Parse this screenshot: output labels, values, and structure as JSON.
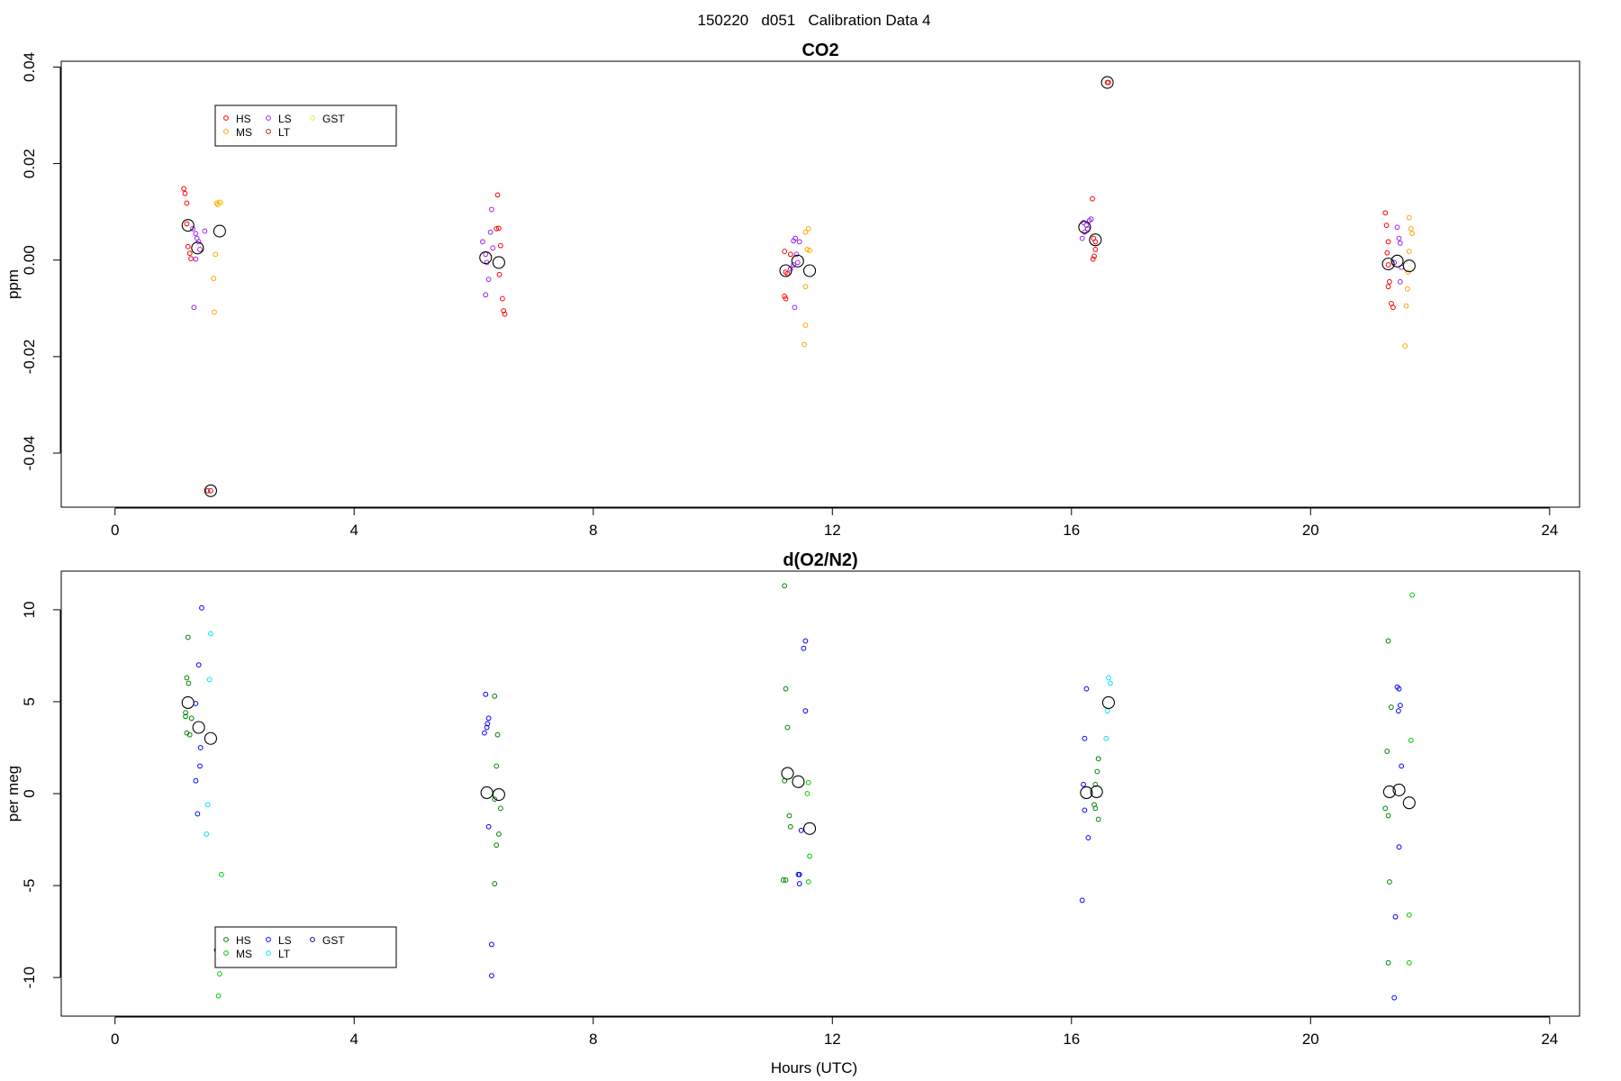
{
  "figure": {
    "suptitle": "150220   d051   Calibration Data 4",
    "xlabel": "Hours (UTC)"
  },
  "chart_data": [
    {
      "type": "scatter",
      "title": "CO2",
      "ylabel": "ppm",
      "xlim": [
        -0.9,
        24.5
      ],
      "ylim": [
        -0.0512,
        0.0412
      ],
      "xticks": [
        0,
        4,
        8,
        12,
        16,
        20,
        24
      ],
      "xtick_labels": [
        "0",
        "4",
        "8",
        "12",
        "16",
        "20",
        "24"
      ],
      "yticks": [
        -0.04,
        -0.02,
        0.0,
        0.02,
        0.04
      ],
      "ytick_labels": [
        "-0.04",
        "-0.02",
        "0.00",
        "0.02",
        "0.04"
      ],
      "legend_placement": "top-left",
      "series": [
        {
          "name": "HS",
          "color": "#ff0000",
          "points": [
            {
              "x": 1.15,
              "y": 0.0148
            },
            {
              "x": 1.17,
              "y": 0.0138
            },
            {
              "x": 1.2,
              "y": 0.0118
            },
            {
              "x": 1.2,
              "y": 0.0075
            },
            {
              "x": 1.22,
              "y": 0.0028
            },
            {
              "x": 1.25,
              "y": 0.0014
            },
            {
              "x": 1.27,
              "y": 0.0003
            },
            {
              "x": 1.55,
              "y": -0.0478
            },
            {
              "x": 6.4,
              "y": 0.0135
            },
            {
              "x": 6.38,
              "y": 0.0065
            },
            {
              "x": 6.42,
              "y": 0.0066
            },
            {
              "x": 6.45,
              "y": 0.003
            },
            {
              "x": 6.43,
              "y": -0.003
            },
            {
              "x": 6.48,
              "y": -0.008
            },
            {
              "x": 6.5,
              "y": -0.0105
            },
            {
              "x": 6.52,
              "y": -0.0112
            },
            {
              "x": 11.2,
              "y": 0.0018
            },
            {
              "x": 11.22,
              "y": -0.0025
            },
            {
              "x": 11.25,
              "y": -0.0028
            },
            {
              "x": 11.2,
              "y": -0.0075
            },
            {
              "x": 11.22,
              "y": -0.008
            },
            {
              "x": 11.3,
              "y": 0.0012
            },
            {
              "x": 16.35,
              "y": 0.0127
            },
            {
              "x": 16.37,
              "y": 0.0045
            },
            {
              "x": 16.4,
              "y": 0.0038
            },
            {
              "x": 16.4,
              "y": 0.0022
            },
            {
              "x": 16.38,
              "y": 0.0008
            },
            {
              "x": 16.36,
              "y": 0.0002
            },
            {
              "x": 16.6,
              "y": 0.0368
            },
            {
              "x": 21.25,
              "y": 0.0098
            },
            {
              "x": 21.27,
              "y": 0.0072
            },
            {
              "x": 21.3,
              "y": 0.0038
            },
            {
              "x": 21.3,
              "y": -0.001
            },
            {
              "x": 21.32,
              "y": -0.0045
            },
            {
              "x": 21.3,
              "y": -0.0055
            },
            {
              "x": 21.35,
              "y": -0.009
            },
            {
              "x": 21.38,
              "y": -0.0098
            },
            {
              "x": 21.28,
              "y": 0.0015
            }
          ]
        },
        {
          "name": "MS",
          "color": "#ffa500",
          "points": [
            {
              "x": 1.7,
              "y": 0.0118
            },
            {
              "x": 1.72,
              "y": 0.0115
            },
            {
              "x": 1.75,
              "y": 0.012
            },
            {
              "x": 1.68,
              "y": 0.0012
            },
            {
              "x": 1.65,
              "y": -0.0038
            },
            {
              "x": 1.66,
              "y": -0.0108
            },
            {
              "x": 11.55,
              "y": 0.0058
            },
            {
              "x": 11.6,
              "y": 0.0065
            },
            {
              "x": 11.58,
              "y": 0.0022
            },
            {
              "x": 11.62,
              "y": 0.002
            },
            {
              "x": 11.55,
              "y": -0.0055
            },
            {
              "x": 11.55,
              "y": -0.0135
            },
            {
              "x": 11.53,
              "y": -0.0175
            },
            {
              "x": 21.65,
              "y": 0.0088
            },
            {
              "x": 21.68,
              "y": 0.0065
            },
            {
              "x": 21.7,
              "y": 0.0055
            },
            {
              "x": 21.65,
              "y": 0.0018
            },
            {
              "x": 21.63,
              "y": -0.0025
            },
            {
              "x": 21.62,
              "y": -0.006
            },
            {
              "x": 21.6,
              "y": -0.0095
            },
            {
              "x": 21.58,
              "y": -0.0178
            }
          ]
        },
        {
          "name": "LS",
          "color": "#a020f0",
          "points": [
            {
              "x": 1.3,
              "y": 0.0065
            },
            {
              "x": 1.35,
              "y": 0.0055
            },
            {
              "x": 1.37,
              "y": 0.0045
            },
            {
              "x": 1.4,
              "y": 0.0038
            },
            {
              "x": 1.42,
              "y": 0.0022
            },
            {
              "x": 1.35,
              "y": 0.0002
            },
            {
              "x": 1.32,
              "y": -0.0098
            },
            {
              "x": 1.5,
              "y": 0.006
            },
            {
              "x": 6.15,
              "y": 0.0038
            },
            {
              "x": 6.2,
              "y": 0.0012
            },
            {
              "x": 6.22,
              "y": -0.0005
            },
            {
              "x": 6.25,
              "y": -0.004
            },
            {
              "x": 6.2,
              "y": -0.0072
            },
            {
              "x": 6.28,
              "y": 0.0058
            },
            {
              "x": 6.3,
              "y": 0.0105
            },
            {
              "x": 6.32,
              "y": 0.0025
            },
            {
              "x": 11.35,
              "y": 0.004
            },
            {
              "x": 11.38,
              "y": 0.0045
            },
            {
              "x": 11.4,
              "y": 0.0012
            },
            {
              "x": 11.42,
              "y": -0.0005
            },
            {
              "x": 11.35,
              "y": -0.001
            },
            {
              "x": 11.37,
              "y": -0.0098
            },
            {
              "x": 11.45,
              "y": 0.0038
            },
            {
              "x": 11.3,
              "y": -0.0018
            },
            {
              "x": 16.2,
              "y": 0.0078
            },
            {
              "x": 16.25,
              "y": 0.0072
            },
            {
              "x": 16.27,
              "y": 0.0065
            },
            {
              "x": 16.3,
              "y": 0.0082
            },
            {
              "x": 16.22,
              "y": 0.0058
            },
            {
              "x": 16.18,
              "y": 0.0045
            },
            {
              "x": 16.33,
              "y": 0.0085
            },
            {
              "x": 21.45,
              "y": 0.0068
            },
            {
              "x": 21.48,
              "y": 0.0045
            },
            {
              "x": 21.5,
              "y": 0.0035
            },
            {
              "x": 21.52,
              "y": -0.0015
            },
            {
              "x": 21.5,
              "y": -0.0045
            },
            {
              "x": 21.4,
              "y": -0.0005
            }
          ]
        },
        {
          "name": "LT",
          "color": "#b22222",
          "points": [
            {
              "x": 1.6,
              "y": -0.0478
            },
            {
              "x": 16.62,
              "y": 0.0368
            }
          ]
        },
        {
          "name": "GST",
          "color": "#e8e84a",
          "points": [
            {
              "x": 1.78,
              "y": 0.0118
            }
          ]
        }
      ],
      "means": [
        {
          "x": 1.22,
          "y": 0.0072
        },
        {
          "x": 1.38,
          "y": 0.0025
        },
        {
          "x": 1.75,
          "y": 0.006
        },
        {
          "x": 1.6,
          "y": -0.0478
        },
        {
          "x": 6.2,
          "y": 0.0005
        },
        {
          "x": 6.42,
          "y": -0.0005
        },
        {
          "x": 11.22,
          "y": -0.0022
        },
        {
          "x": 11.42,
          "y": -0.0002
        },
        {
          "x": 11.62,
          "y": -0.0022
        },
        {
          "x": 16.22,
          "y": 0.0068
        },
        {
          "x": 16.4,
          "y": 0.0042
        },
        {
          "x": 16.6,
          "y": 0.0368
        },
        {
          "x": 21.3,
          "y": -0.0008
        },
        {
          "x": 21.45,
          "y": -0.0002
        },
        {
          "x": 21.65,
          "y": -0.0012
        }
      ]
    },
    {
      "type": "scatter",
      "title": "d(O2/N2)",
      "ylabel": "per meg",
      "xlim": [
        -0.9,
        24.5
      ],
      "ylim": [
        -12.1,
        12.1
      ],
      "xticks": [
        0,
        4,
        8,
        12,
        16,
        20,
        24
      ],
      "xtick_labels": [
        "0",
        "4",
        "8",
        "12",
        "16",
        "20",
        "24"
      ],
      "yticks": [
        -10,
        -5,
        0,
        5,
        10
      ],
      "ytick_labels": [
        "-10",
        "-5",
        "0",
        "5",
        "10"
      ],
      "legend_placement": "bottom-left",
      "series": [
        {
          "name": "HS",
          "color": "#008000",
          "points": [
            {
              "x": 1.22,
              "y": 8.5
            },
            {
              "x": 1.2,
              "y": 6.3
            },
            {
              "x": 1.23,
              "y": 6
            },
            {
              "x": 1.18,
              "y": 4.4
            },
            {
              "x": 1.18,
              "y": 4.2
            },
            {
              "x": 1.25,
              "y": 3.2
            },
            {
              "x": 1.2,
              "y": 3.3
            },
            {
              "x": 1.28,
              "y": 4.1
            },
            {
              "x": 6.35,
              "y": 5.3
            },
            {
              "x": 6.4,
              "y": 3.2
            },
            {
              "x": 6.38,
              "y": 1.5
            },
            {
              "x": 6.35,
              "y": -0.3
            },
            {
              "x": 6.45,
              "y": -0.8
            },
            {
              "x": 6.42,
              "y": -2.2
            },
            {
              "x": 6.38,
              "y": -2.8
            },
            {
              "x": 6.35,
              "y": -4.9
            },
            {
              "x": 11.2,
              "y": 11.3
            },
            {
              "x": 11.22,
              "y": 5.7
            },
            {
              "x": 11.25,
              "y": 3.6
            },
            {
              "x": 11.2,
              "y": 0.7
            },
            {
              "x": 11.28,
              "y": -1.2
            },
            {
              "x": 11.3,
              "y": -1.8
            },
            {
              "x": 11.22,
              "y": -4.7
            },
            {
              "x": 11.18,
              "y": -4.7
            },
            {
              "x": 16.45,
              "y": 1.9
            },
            {
              "x": 16.43,
              "y": 1.2
            },
            {
              "x": 16.4,
              "y": 0.5
            },
            {
              "x": 16.38,
              "y": -0.6
            },
            {
              "x": 16.4,
              "y": -0.8
            },
            {
              "x": 16.45,
              "y": -1.4
            },
            {
              "x": 21.3,
              "y": 8.3
            },
            {
              "x": 21.35,
              "y": 4.7
            },
            {
              "x": 21.28,
              "y": 2.3
            },
            {
              "x": 21.25,
              "y": -0.8
            },
            {
              "x": 21.3,
              "y": -1.2
            },
            {
              "x": 21.32,
              "y": -4.8
            },
            {
              "x": 21.3,
              "y": -9.2
            }
          ]
        },
        {
          "name": "MS",
          "color": "#00cc00",
          "points": [
            {
              "x": 1.78,
              "y": -4.4
            },
            {
              "x": 1.75,
              "y": -9.8
            },
            {
              "x": 1.73,
              "y": -11
            },
            {
              "x": 11.6,
              "y": 0.6
            },
            {
              "x": 11.58,
              "y": 0
            },
            {
              "x": 11.62,
              "y": -3.4
            },
            {
              "x": 11.6,
              "y": -4.8
            },
            {
              "x": 21.7,
              "y": 10.8
            },
            {
              "x": 21.68,
              "y": 2.9
            },
            {
              "x": 21.65,
              "y": -6.6
            },
            {
              "x": 21.65,
              "y": -9.2
            }
          ]
        },
        {
          "name": "LS",
          "color": "#0000ff",
          "points": [
            {
              "x": 1.45,
              "y": 10.1
            },
            {
              "x": 1.4,
              "y": 7
            },
            {
              "x": 1.35,
              "y": 4.9
            },
            {
              "x": 1.43,
              "y": 2.5
            },
            {
              "x": 1.42,
              "y": 1.5
            },
            {
              "x": 1.35,
              "y": 0.7
            },
            {
              "x": 1.38,
              "y": -1.1
            },
            {
              "x": 6.2,
              "y": 5.4
            },
            {
              "x": 6.25,
              "y": 4.1
            },
            {
              "x": 6.23,
              "y": 3.8
            },
            {
              "x": 6.22,
              "y": 3.6
            },
            {
              "x": 6.18,
              "y": 3.3
            },
            {
              "x": 6.25,
              "y": -1.8
            },
            {
              "x": 6.3,
              "y": -8.2
            },
            {
              "x": 6.3,
              "y": -9.9
            },
            {
              "x": 11.55,
              "y": 8.3
            },
            {
              "x": 11.52,
              "y": 7.9
            },
            {
              "x": 11.55,
              "y": 4.5
            },
            {
              "x": 11.48,
              "y": -2
            },
            {
              "x": 11.45,
              "y": -4.4
            },
            {
              "x": 11.43,
              "y": -4.4
            },
            {
              "x": 11.45,
              "y": -4.9
            },
            {
              "x": 16.25,
              "y": 5.7
            },
            {
              "x": 16.22,
              "y": 3.0
            },
            {
              "x": 16.2,
              "y": 0.5
            },
            {
              "x": 16.22,
              "y": -0.9
            },
            {
              "x": 16.28,
              "y": -2.4
            },
            {
              "x": 16.18,
              "y": -5.8
            },
            {
              "x": 21.45,
              "y": 5.8
            },
            {
              "x": 21.48,
              "y": 5.7
            },
            {
              "x": 21.5,
              "y": 4.8
            },
            {
              "x": 21.47,
              "y": 4.5
            },
            {
              "x": 21.52,
              "y": 1.5
            },
            {
              "x": 21.48,
              "y": -2.9
            },
            {
              "x": 21.42,
              "y": -6.7
            },
            {
              "x": 21.4,
              "y": -11.1
            }
          ]
        },
        {
          "name": "LT",
          "color": "#00e5ee",
          "points": [
            {
              "x": 1.6,
              "y": 8.7
            },
            {
              "x": 1.58,
              "y": 6.2
            },
            {
              "x": 1.55,
              "y": -0.6
            },
            {
              "x": 1.53,
              "y": -2.2
            },
            {
              "x": 16.62,
              "y": 6.3
            },
            {
              "x": 16.65,
              "y": 6.0
            },
            {
              "x": 16.6,
              "y": 4.5
            },
            {
              "x": 16.58,
              "y": 3.0
            }
          ]
        },
        {
          "name": "GST",
          "color": "#00008b",
          "points": [
            {
              "x": 1.7,
              "y": -8.5
            }
          ]
        }
      ],
      "means": [
        {
          "x": 1.22,
          "y": 4.95
        },
        {
          "x": 1.4,
          "y": 3.6
        },
        {
          "x": 1.6,
          "y": 3.0
        },
        {
          "x": 6.22,
          "y": 0.05
        },
        {
          "x": 6.42,
          "y": -0.05
        },
        {
          "x": 11.25,
          "y": 1.1
        },
        {
          "x": 11.43,
          "y": 0.65
        },
        {
          "x": 11.62,
          "y": -1.9
        },
        {
          "x": 16.25,
          "y": 0.05
        },
        {
          "x": 16.42,
          "y": 0.1
        },
        {
          "x": 16.62,
          "y": 4.95
        },
        {
          "x": 21.32,
          "y": 0.1
        },
        {
          "x": 21.48,
          "y": 0.2
        },
        {
          "x": 21.65,
          "y": -0.5
        }
      ]
    }
  ]
}
